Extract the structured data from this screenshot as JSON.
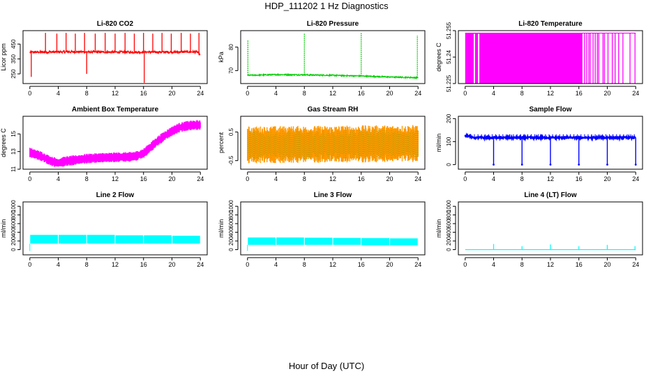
{
  "figure": {
    "title": "HDP_111202  1 Hz Diagnostics",
    "x_caption": "Hour of Day (UTC)"
  },
  "chart_data": [
    {
      "type": "line",
      "title": "Li-820 CO2",
      "ylabel": "Licor ppm",
      "color": "#ff0000",
      "xlim": [
        0,
        24
      ],
      "xticks": [
        0,
        4,
        8,
        12,
        16,
        20,
        24
      ],
      "ylim": [
        185,
        540
      ],
      "yticks": [
        250,
        350,
        450
      ],
      "grid": false,
      "pattern": "baseline_with_spikes",
      "baseline": [
        [
          0,
          395
        ],
        [
          6,
          398
        ],
        [
          12,
          396
        ],
        [
          18,
          396
        ],
        [
          23.5,
          398
        ],
        [
          24,
          375
        ]
      ],
      "noise": 8,
      "spikes": [
        [
          0.2,
          230
        ],
        [
          2.2,
          525
        ],
        [
          3.8,
          520
        ],
        [
          5.1,
          525
        ],
        [
          6.4,
          520
        ],
        [
          7.7,
          525
        ],
        [
          8.0,
          250
        ],
        [
          9.2,
          520
        ],
        [
          10.6,
          525
        ],
        [
          12.0,
          520
        ],
        [
          13.4,
          525
        ],
        [
          14.7,
          520
        ],
        [
          16.0,
          525
        ],
        [
          16.1,
          190
        ],
        [
          17.3,
          520
        ],
        [
          18.6,
          525
        ],
        [
          19.9,
          520
        ],
        [
          21.3,
          525
        ],
        [
          22.6,
          520
        ],
        [
          23.8,
          525
        ]
      ]
    },
    {
      "type": "line",
      "title": "Li-820 Pressure",
      "ylabel": "kPa",
      "color": "#00cc00",
      "xlim": [
        0,
        24
      ],
      "xticks": [
        0,
        4,
        8,
        12,
        16,
        20,
        24
      ],
      "ylim": [
        64.5,
        87
      ],
      "yticks": [
        70,
        80
      ],
      "grid": false,
      "pattern": "baseline_with_spikes",
      "baseline": [
        [
          0,
          68.0
        ],
        [
          4,
          68.3
        ],
        [
          8,
          68.2
        ],
        [
          12,
          68.0
        ],
        [
          16,
          67.7
        ],
        [
          20,
          67.3
        ],
        [
          24,
          67.0
        ]
      ],
      "noise": 0.25,
      "spikes": [
        [
          0.05,
          83
        ],
        [
          8.0,
          86
        ],
        [
          16.0,
          86
        ],
        [
          23.9,
          85
        ]
      ]
    },
    {
      "type": "area",
      "title": "Li-820 Temperature",
      "ylabel": "degrees C",
      "color": "#ff00ff",
      "xlim": [
        0,
        24
      ],
      "xticks": [
        0,
        4,
        8,
        12,
        16,
        20,
        24
      ],
      "ylim": [
        51.225,
        51.255
      ],
      "yticks": [
        51.225,
        51.24,
        51.255
      ],
      "grid": false,
      "pattern": "flicker",
      "filled_until": 16.5,
      "gaps": [
        1.3,
        1.9
      ],
      "flicker_lines": [
        16.8,
        17.1,
        17.4,
        17.6,
        18.0,
        18.3,
        18.6,
        18.8,
        19.4,
        19.6,
        20.1,
        20.7,
        21.1,
        21.6,
        22.2,
        23.2,
        23.9
      ],
      "top_value": 51.2536
    },
    {
      "type": "line",
      "title": "Ambient Box Temperature",
      "ylabel": "degrees C",
      "color": "#ff00ff",
      "xlim": [
        0,
        24
      ],
      "xticks": [
        0,
        4,
        8,
        12,
        16,
        20,
        24
      ],
      "ylim": [
        11,
        17
      ],
      "yticks": [
        11,
        13,
        15
      ],
      "grid": false,
      "pattern": "band",
      "points": [
        [
          0,
          12.9
        ],
        [
          1.5,
          12.5
        ],
        [
          3,
          11.9
        ],
        [
          4,
          11.7
        ],
        [
          5,
          11.9
        ],
        [
          6,
          12.0
        ],
        [
          8,
          12.2
        ],
        [
          10,
          12.3
        ],
        [
          12,
          12.35
        ],
        [
          14,
          12.4
        ],
        [
          15,
          12.5
        ],
        [
          16,
          12.8
        ],
        [
          17,
          13.5
        ],
        [
          18,
          14.2
        ],
        [
          19,
          14.8
        ],
        [
          20,
          15.3
        ],
        [
          21,
          15.7
        ],
        [
          22,
          15.9
        ],
        [
          23,
          16.0
        ],
        [
          24,
          16.0
        ]
      ],
      "band_halfwidth": 0.55
    },
    {
      "type": "line",
      "title": "Gas Stream RH",
      "ylabel": "percent",
      "color": "#ff9900",
      "xlim": [
        0,
        24
      ],
      "xticks": [
        0,
        4,
        8,
        12,
        16,
        20,
        24
      ],
      "ylim": [
        -0.8,
        1.05
      ],
      "yticks": [
        -0.5,
        0.5
      ],
      "grid": false,
      "pattern": "band",
      "points": [
        [
          0,
          0.05
        ],
        [
          24,
          0.1
        ]
      ],
      "band_halfwidth": 0.65,
      "second_color": "#999900"
    },
    {
      "type": "line",
      "title": "Sample Flow",
      "ylabel": "ml/min",
      "color": "#0000ff",
      "xlim": [
        0,
        24
      ],
      "xticks": [
        0,
        4,
        8,
        12,
        16,
        20,
        24
      ],
      "ylim": [
        -20,
        210
      ],
      "yticks": [
        0,
        100,
        200
      ],
      "grid": false,
      "pattern": "flow",
      "level": 117,
      "band": [
        110,
        125
      ],
      "start_level": 125,
      "start_until": 0.8,
      "dropouts": [
        4.0,
        8.0,
        12.0,
        16.0,
        20.0,
        24.0
      ],
      "dots_every": 0.5,
      "dots_value": 132
    },
    {
      "type": "area",
      "title": "Line 2 Flow",
      "ylabel": "ml/min",
      "color": "#00ffff",
      "xlim": [
        0,
        24
      ],
      "xticks": [
        0,
        4,
        8,
        12,
        16,
        20,
        24
      ],
      "ylim": [
        -120,
        1100
      ],
      "yticks": [
        0,
        200,
        400,
        600,
        800,
        1000
      ],
      "grid": false,
      "pattern": "block",
      "blocks": [
        [
          0,
          4,
          140,
          340
        ],
        [
          4,
          8,
          140,
          340
        ],
        [
          8,
          12,
          140,
          340
        ],
        [
          12,
          16,
          140,
          330
        ],
        [
          16,
          20,
          140,
          330
        ],
        [
          20,
          24,
          140,
          320
        ]
      ]
    },
    {
      "type": "area",
      "title": "Line 3 Flow",
      "ylabel": "ml/min",
      "color": "#00ffff",
      "xlim": [
        0,
        24
      ],
      "xticks": [
        0,
        4,
        8,
        12,
        16,
        20,
        24
      ],
      "ylim": [
        -120,
        1100
      ],
      "yticks": [
        0,
        200,
        400,
        600,
        800,
        1000
      ],
      "grid": false,
      "pattern": "block",
      "blocks": [
        [
          0,
          4,
          110,
          280
        ],
        [
          4,
          8,
          110,
          280
        ],
        [
          8,
          12,
          110,
          275
        ],
        [
          12,
          16,
          110,
          270
        ],
        [
          16,
          20,
          100,
          265
        ],
        [
          20,
          24,
          100,
          260
        ]
      ]
    },
    {
      "type": "line",
      "title": "Line 4 (LT) Flow",
      "ylabel": "ml/min",
      "color": "#00ffff",
      "xlim": [
        0,
        24
      ],
      "xticks": [
        0,
        4,
        8,
        12,
        16,
        20,
        24
      ],
      "ylim": [
        -120,
        1100
      ],
      "yticks": [
        0,
        200,
        400,
        600,
        800,
        1000
      ],
      "grid": false,
      "pattern": "baseline_with_spikes",
      "baseline": [
        [
          0,
          0
        ],
        [
          24,
          0
        ]
      ],
      "noise": 0,
      "spikes": [
        [
          4.0,
          130
        ],
        [
          8.0,
          80
        ],
        [
          12.0,
          120
        ],
        [
          16.0,
          80
        ],
        [
          20.0,
          110
        ],
        [
          23.9,
          80
        ]
      ]
    }
  ]
}
